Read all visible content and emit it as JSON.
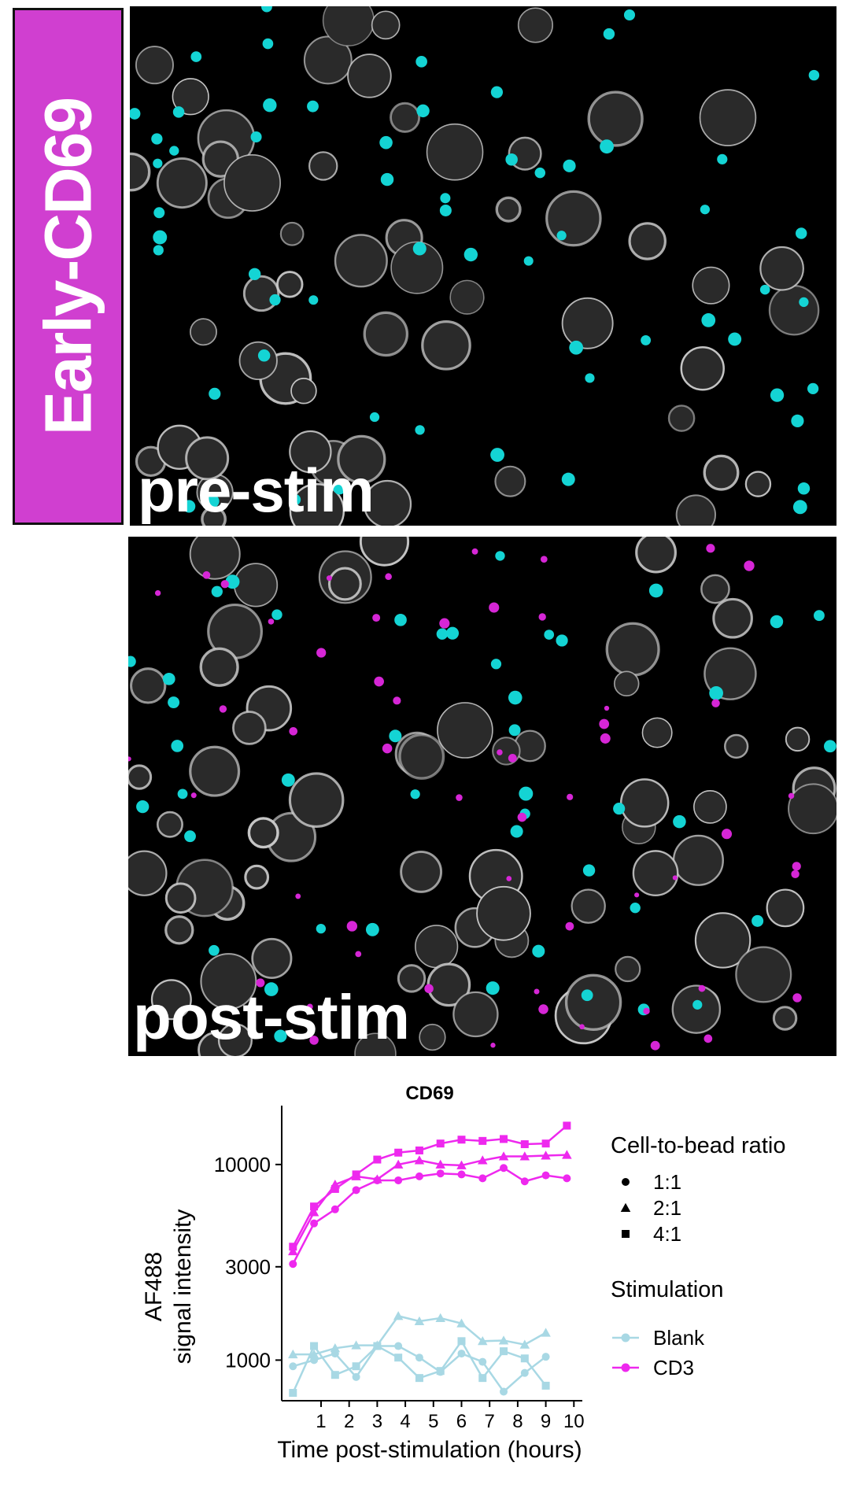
{
  "figure": {
    "side_label": "Early-CD69",
    "panel_top_label": "pre-stim",
    "panel_bottom_label": "post-stim",
    "colors": {
      "side_tag": "#d03fd0",
      "cell_gray": "#cfcfcf",
      "bead_cyan": "#14d4d4",
      "signal_magenta": "#d626d6"
    }
  },
  "chart_data": {
    "type": "line",
    "title": "CD69",
    "xlabel": "Time post-stimulation (hours)",
    "ylabel_line1": "AF488",
    "ylabel_line2": "signal intensity",
    "y_scale": "log",
    "ylim": [
      620,
      20000
    ],
    "xlim": [
      -0.4,
      10.3
    ],
    "x_ticks": [
      "1",
      "2",
      "3",
      "4",
      "5",
      "6",
      "7",
      "8",
      "9",
      "10"
    ],
    "y_ticks": [
      {
        "value": 1000,
        "label": "1000"
      },
      {
        "value": 3000,
        "label": "3000"
      },
      {
        "value": 10000,
        "label": "10000"
      }
    ],
    "grid": false,
    "legend": {
      "placement": "right",
      "ratio_title": "Cell-to-bead ratio",
      "ratio_items": [
        {
          "label": "1:1",
          "marker": "circle"
        },
        {
          "label": "2:1",
          "marker": "triangle"
        },
        {
          "label": "4:1",
          "marker": "square"
        }
      ],
      "stim_title": "Stimulation",
      "stim_items": [
        {
          "label": "Blank",
          "color": "#a8d8e4"
        },
        {
          "label": "CD3",
          "color": "#ee28ee"
        }
      ]
    },
    "series": [
      {
        "stim": "CD3",
        "ratio": "1:1",
        "marker": "circle",
        "color": "#ee28ee",
        "x": [
          0,
          0.75,
          1.5,
          2.25,
          3,
          3.75,
          4.5,
          5.25,
          6,
          6.75,
          7.5,
          8.25,
          9,
          9.75
        ],
        "y": [
          3100,
          5000,
          5900,
          7400,
          8300,
          8300,
          8700,
          9000,
          8900,
          8500,
          9600,
          8200,
          8800,
          8500
        ]
      },
      {
        "stim": "CD3",
        "ratio": "2:1",
        "marker": "triangle",
        "color": "#ee28ee",
        "x": [
          0,
          0.75,
          1.5,
          2.25,
          3,
          3.75,
          4.5,
          5.25,
          6,
          6.75,
          7.5,
          8.25,
          9,
          9.75
        ],
        "y": [
          3600,
          5700,
          7900,
          8700,
          8400,
          10000,
          10500,
          10000,
          9900,
          10500,
          11000,
          11000,
          11100,
          11200
        ]
      },
      {
        "stim": "CD3",
        "ratio": "4:1",
        "marker": "square",
        "color": "#ee28ee",
        "x": [
          0,
          0.75,
          1.5,
          2.25,
          3,
          3.75,
          4.5,
          5.25,
          6,
          6.75,
          7.5,
          8.25,
          9,
          9.75
        ],
        "y": [
          3800,
          6100,
          7500,
          8900,
          10600,
          11500,
          11800,
          12800,
          13400,
          13200,
          13500,
          12700,
          12800,
          15800
        ]
      },
      {
        "stim": "Blank",
        "ratio": "1:1",
        "marker": "circle",
        "color": "#a8d8e4",
        "x": [
          0,
          0.75,
          1.5,
          2.25,
          3,
          3.75,
          4.5,
          5.25,
          6,
          6.75,
          7.5,
          8.25,
          9
        ],
        "y": [
          930,
          1000,
          1080,
          820,
          1180,
          1180,
          1030,
          870,
          1080,
          980,
          690,
          860,
          1040
        ]
      },
      {
        "stim": "Blank",
        "ratio": "2:1",
        "marker": "triangle",
        "color": "#a8d8e4",
        "x": [
          0,
          0.75,
          1.5,
          2.25,
          3,
          3.75,
          4.5,
          5.25,
          6,
          6.75,
          7.5,
          8.25,
          9
        ],
        "y": [
          1070,
          1070,
          1150,
          1190,
          1190,
          1680,
          1580,
          1640,
          1540,
          1250,
          1260,
          1200,
          1380
        ]
      },
      {
        "stim": "Blank",
        "ratio": "4:1",
        "marker": "square",
        "color": "#a8d8e4",
        "x": [
          0,
          0.75,
          1.5,
          2.25,
          3,
          3.75,
          4.5,
          5.25,
          6,
          6.75,
          7.5,
          8.25,
          9
        ],
        "y": [
          680,
          1180,
          840,
          930,
          1180,
          1030,
          810,
          880,
          1250,
          810,
          1110,
          1020,
          740
        ]
      }
    ]
  }
}
